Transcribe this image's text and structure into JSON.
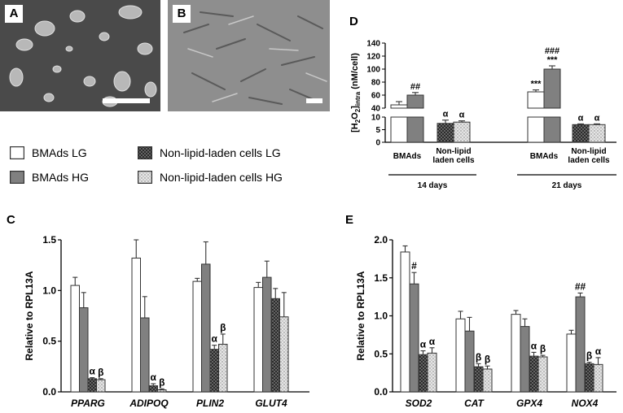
{
  "panels": {
    "A": "A",
    "B": "B",
    "C": "C",
    "D": "D",
    "E": "E"
  },
  "legend": {
    "items": [
      {
        "label": "BMAds LG",
        "fill": "white"
      },
      {
        "label": "BMAds HG",
        "fill": "gray"
      },
      {
        "label": "Non-lipid-laden cells LG",
        "fill": "darkhatch"
      },
      {
        "label": "Non-lipid-laden cells HG",
        "fill": "lighthatch"
      }
    ]
  },
  "colors": {
    "bmads_lg": "#ffffff",
    "bmads_hg": "#808080",
    "non_lipid_lg": "#2b2b2b",
    "non_lipid_hg": "#d0d0d0",
    "axis": "#000000"
  },
  "chart_data": [
    {
      "id": "D",
      "type": "bar",
      "ylabel": "[H2O2]intra (nM/cell)",
      "ylabel_parts": [
        "[H",
        "2",
        "O",
        "2",
        "]",
        "intra",
        " (nM/cell)"
      ],
      "broken_axis": true,
      "lower_ylim": [
        0,
        10
      ],
      "upper_ylim": [
        40,
        140
      ],
      "lower_ticks": [
        0,
        5,
        10
      ],
      "upper_ticks": [
        40,
        60,
        80,
        100,
        120,
        140
      ],
      "groups": [
        {
          "label": "BMAds",
          "time": "14 days",
          "bars": [
            {
              "series": "BMAds LG",
              "value": 45,
              "err": 5,
              "mark": ""
            },
            {
              "series": "BMAds HG",
              "value": 60,
              "err": 4,
              "mark": "##"
            }
          ]
        },
        {
          "label": [
            "Non-lipid",
            "laden cells"
          ],
          "time": "14 days",
          "bars": [
            {
              "series": "Non-lipid-laden cells LG",
              "value": 7.5,
              "err": 1.3,
              "mark": "α"
            },
            {
              "series": "Non-lipid-laden cells HG",
              "value": 8.0,
              "err": 0.5,
              "mark": "α"
            }
          ]
        },
        {
          "label": "BMAds",
          "time": "21 days",
          "bars": [
            {
              "series": "BMAds LG",
              "value": 65,
              "err": 3,
              "mark": "***"
            },
            {
              "series": "BMAds HG",
              "value": 100,
              "err": 5,
              "mark": "###\n***"
            }
          ]
        },
        {
          "label": [
            "Non-lipid",
            "laden cells"
          ],
          "time": "21 days",
          "bars": [
            {
              "series": "Non-lipid-laden cells LG",
              "value": 7.0,
              "err": 0.3,
              "mark": "α"
            },
            {
              "series": "Non-lipid-laden cells HG",
              "value": 7.0,
              "err": 0.3,
              "mark": "α"
            }
          ]
        }
      ],
      "time_labels": [
        "14 days",
        "21 days"
      ]
    },
    {
      "id": "C",
      "type": "bar",
      "ylabel": "Relative to RPL13A",
      "ylim": [
        0,
        1.5
      ],
      "yticks": [
        "0.0",
        "0.5",
        "1.0",
        "1.5"
      ],
      "categories": [
        "PPARG",
        "ADIPOQ",
        "PLIN2",
        "GLUT4"
      ],
      "series": [
        {
          "name": "BMAds LG",
          "values": [
            1.05,
            1.32,
            1.09,
            1.03
          ],
          "errors": [
            0.08,
            0.18,
            0.03,
            0.05
          ]
        },
        {
          "name": "BMAds HG",
          "values": [
            0.83,
            0.73,
            1.26,
            1.13
          ],
          "errors": [
            0.15,
            0.21,
            0.22,
            0.16
          ]
        },
        {
          "name": "Non-lipid-laden cells LG",
          "values": [
            0.13,
            0.06,
            0.42,
            0.92
          ],
          "errors": [
            0.01,
            0.02,
            0.04,
            0.1
          ]
        },
        {
          "name": "Non-lipid-laden cells HG",
          "values": [
            0.12,
            0.02,
            0.47,
            0.74
          ],
          "errors": [
            0.01,
            0.01,
            0.1,
            0.24
          ]
        }
      ],
      "marks": [
        {
          "category": 0,
          "series": 2,
          "text": "α"
        },
        {
          "category": 0,
          "series": 3,
          "text": "β"
        },
        {
          "category": 1,
          "series": 2,
          "text": "α"
        },
        {
          "category": 1,
          "series": 3,
          "text": "β"
        },
        {
          "category": 2,
          "series": 2,
          "text": "α"
        },
        {
          "category": 2,
          "series": 3,
          "text": "β"
        }
      ]
    },
    {
      "id": "E",
      "type": "bar",
      "ylabel": "Relative to RPL13A",
      "ylim": [
        0,
        2.0
      ],
      "yticks": [
        "0.0",
        "0.5",
        "1.0",
        "1.5",
        "2.0"
      ],
      "categories": [
        "SOD2",
        "CAT",
        "GPX4",
        "NOX4"
      ],
      "series": [
        {
          "name": "BMAds LG",
          "values": [
            1.84,
            0.96,
            1.02,
            0.76
          ],
          "errors": [
            0.08,
            0.1,
            0.05,
            0.05
          ]
        },
        {
          "name": "BMAds HG",
          "values": [
            1.42,
            0.8,
            0.86,
            1.25
          ],
          "errors": [
            0.15,
            0.18,
            0.1,
            0.05
          ]
        },
        {
          "name": "Non-lipid-laden cells LG",
          "values": [
            0.49,
            0.33,
            0.47,
            0.37
          ],
          "errors": [
            0.05,
            0.04,
            0.05,
            0.02
          ]
        },
        {
          "name": "Non-lipid-laden cells HG",
          "values": [
            0.51,
            0.3,
            0.46,
            0.36
          ],
          "errors": [
            0.07,
            0.04,
            0.02,
            0.09
          ]
        }
      ],
      "marks": [
        {
          "category": 0,
          "series": 1,
          "text": "#"
        },
        {
          "category": 0,
          "series": 2,
          "text": "α"
        },
        {
          "category": 0,
          "series": 3,
          "text": "α"
        },
        {
          "category": 1,
          "series": 2,
          "text": "β"
        },
        {
          "category": 1,
          "series": 3,
          "text": "β"
        },
        {
          "category": 2,
          "series": 2,
          "text": "α"
        },
        {
          "category": 2,
          "series": 3,
          "text": "β"
        },
        {
          "category": 3,
          "series": 1,
          "text": "##"
        },
        {
          "category": 3,
          "series": 2,
          "text": "β"
        },
        {
          "category": 3,
          "series": 3,
          "text": "α"
        }
      ]
    }
  ]
}
